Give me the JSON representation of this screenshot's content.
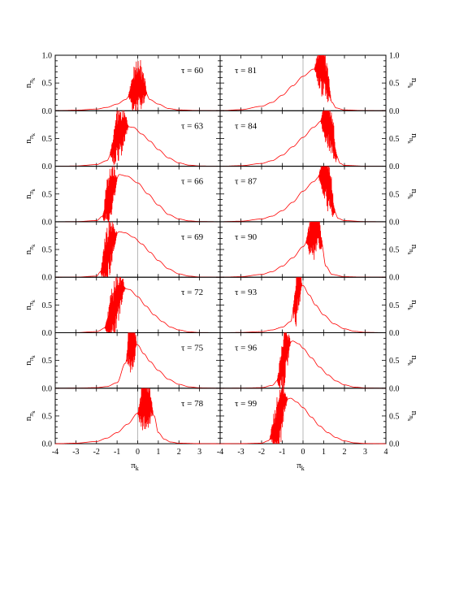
{
  "figure": {
    "xlabel": "π",
    "xlabel_sub": "k",
    "ylabel": "n",
    "ylabel_sub1": "π",
    "ylabel_sub2": "k"
  },
  "chart_data": {
    "type": "line",
    "layout": "7 rows x 2 columns of panels sharing axes",
    "xlim": [
      -4,
      4
    ],
    "ylim": [
      0,
      1
    ],
    "xticks": [
      -4,
      -3,
      -2,
      -1,
      0,
      1,
      2,
      3
    ],
    "xticks_right_panel": [
      -4,
      -3,
      -2,
      -1,
      0,
      1,
      2,
      3,
      4
    ],
    "yticks": [
      "0.0",
      "0.5",
      "1.0"
    ],
    "reference_line_x": 0,
    "line_color": "#ff0000",
    "panels": [
      {
        "label": "τ = 60",
        "col": 0,
        "row": 0,
        "env_x": [
          -4,
          -3,
          -2,
          -1.5,
          -1,
          -0.6,
          -0.3,
          0,
          0.3,
          0.6,
          1,
          1.5,
          2,
          3,
          4
        ],
        "env_y": [
          0,
          0.01,
          0.03,
          0.06,
          0.12,
          0.2,
          0.32,
          0.45,
          0.4,
          0.2,
          0.12,
          0.04,
          0.015,
          0.003,
          0
        ],
        "osc_range": [
          -0.45,
          0.45
        ],
        "osc_amp": 0.55
      },
      {
        "label": "τ = 63",
        "col": 0,
        "row": 1,
        "env_x": [
          -4,
          -3,
          -2,
          -1.5,
          -1.2,
          -1,
          -0.6,
          -0.2,
          0.2,
          0.6,
          1,
          1.5,
          2,
          2.5,
          3,
          4
        ],
        "env_y": [
          0,
          0.005,
          0.03,
          0.1,
          0.3,
          0.55,
          0.72,
          0.7,
          0.58,
          0.45,
          0.3,
          0.15,
          0.06,
          0.02,
          0.005,
          0
        ],
        "osc_range": [
          -1.35,
          -0.45
        ],
        "osc_amp": 0.5
      },
      {
        "label": "τ = 66",
        "col": 0,
        "row": 2,
        "env_x": [
          -4,
          -3,
          -2,
          -1.7,
          -1.4,
          -1.1,
          -0.9,
          -0.5,
          0,
          0.5,
          1,
          1.5,
          2,
          2.5,
          3,
          4
        ],
        "env_y": [
          0,
          0.002,
          0.02,
          0.1,
          0.4,
          0.7,
          0.85,
          0.82,
          0.7,
          0.5,
          0.3,
          0.13,
          0.05,
          0.015,
          0.004,
          0
        ],
        "osc_range": [
          -1.7,
          -1.0
        ],
        "osc_amp": 0.55
      },
      {
        "label": "τ = 69",
        "col": 0,
        "row": 3,
        "env_x": [
          -4,
          -3,
          -2,
          -1.8,
          -1.5,
          -1.2,
          -0.9,
          -0.6,
          -0.2,
          0.2,
          0.6,
          1,
          1.5,
          2,
          2.5,
          3,
          4
        ],
        "env_y": [
          0,
          0.002,
          0.02,
          0.1,
          0.4,
          0.7,
          0.82,
          0.8,
          0.72,
          0.6,
          0.45,
          0.3,
          0.15,
          0.06,
          0.02,
          0.005,
          0
        ],
        "osc_range": [
          -1.8,
          -1.0
        ],
        "osc_amp": 0.55
      },
      {
        "label": "τ = 72",
        "col": 0,
        "row": 4,
        "env_x": [
          -4,
          -3,
          -2,
          -1.5,
          -1.2,
          -1,
          -0.7,
          -0.4,
          0,
          0.4,
          0.8,
          1.2,
          1.6,
          2,
          2.5,
          3,
          4
        ],
        "env_y": [
          0,
          0.002,
          0.02,
          0.1,
          0.35,
          0.65,
          0.8,
          0.78,
          0.65,
          0.48,
          0.32,
          0.2,
          0.1,
          0.05,
          0.015,
          0.004,
          0
        ],
        "osc_range": [
          -1.6,
          -0.6
        ],
        "osc_amp": 0.55
      },
      {
        "label": "τ = 75",
        "col": 0,
        "row": 5,
        "env_x": [
          -4,
          -3,
          -2,
          -1.5,
          -1,
          -0.6,
          -0.4,
          -0.2,
          0,
          0.3,
          0.6,
          1,
          1.5,
          2,
          2.5,
          3,
          4
        ],
        "env_y": [
          0,
          0.002,
          0.01,
          0.03,
          0.1,
          0.45,
          0.8,
          0.85,
          0.78,
          0.62,
          0.48,
          0.32,
          0.16,
          0.07,
          0.025,
          0.007,
          0
        ],
        "osc_range": [
          -0.55,
          -0.05
        ],
        "osc_amp": 0.6
      },
      {
        "label": "τ = 78",
        "col": 0,
        "row": 6,
        "env_x": [
          -4,
          -3,
          -2,
          -1.5,
          -1,
          -0.5,
          0,
          0.3,
          0.6,
          0.8,
          1,
          1.3,
          1.6,
          2,
          3,
          4
        ],
        "env_y": [
          0,
          0.01,
          0.04,
          0.1,
          0.2,
          0.35,
          0.55,
          0.75,
          0.7,
          0.5,
          0.2,
          0.08,
          0.03,
          0.01,
          0.002,
          0
        ],
        "osc_range": [
          0.0,
          0.75
        ],
        "osc_amp": 0.6
      },
      {
        "label": "τ = 81",
        "col": 1,
        "row": 0,
        "env_x": [
          -4,
          -3,
          -2,
          -1.5,
          -1,
          -0.5,
          0,
          0.5,
          0.8,
          1,
          1.2,
          1.4,
          1.6,
          2,
          3,
          4
        ],
        "env_y": [
          0,
          0.02,
          0.08,
          0.15,
          0.28,
          0.45,
          0.62,
          0.75,
          0.8,
          0.75,
          0.45,
          0.15,
          0.05,
          0.015,
          0.002,
          0
        ],
        "osc_range": [
          0.55,
          1.35
        ],
        "osc_amp": 0.55
      },
      {
        "label": "τ = 84",
        "col": 1,
        "row": 1,
        "env_x": [
          -4,
          -3,
          -2,
          -1.5,
          -1,
          -0.5,
          0,
          0.5,
          0.9,
          1.2,
          1.4,
          1.6,
          1.8,
          2,
          3,
          4
        ],
        "env_y": [
          0,
          0.01,
          0.05,
          0.1,
          0.2,
          0.35,
          0.52,
          0.7,
          0.82,
          0.85,
          0.6,
          0.2,
          0.05,
          0.015,
          0.002,
          0
        ],
        "osc_range": [
          0.85,
          1.65
        ],
        "osc_amp": 0.55
      },
      {
        "label": "τ = 87",
        "col": 1,
        "row": 2,
        "env_x": [
          -4,
          -3,
          -2,
          -1.5,
          -1,
          -0.5,
          0,
          0.5,
          0.8,
          1.1,
          1.3,
          1.5,
          1.7,
          2,
          3,
          4
        ],
        "env_y": [
          0,
          0.01,
          0.05,
          0.1,
          0.2,
          0.35,
          0.55,
          0.72,
          0.82,
          0.85,
          0.6,
          0.2,
          0.06,
          0.02,
          0.002,
          0
        ],
        "osc_range": [
          0.75,
          1.55
        ],
        "osc_amp": 0.55
      },
      {
        "label": "τ = 90",
        "col": 1,
        "row": 3,
        "env_x": [
          -4,
          -3,
          -2,
          -1.5,
          -1,
          -0.5,
          0,
          0.3,
          0.5,
          0.7,
          0.9,
          1.1,
          1.4,
          2,
          3,
          4
        ],
        "env_y": [
          0,
          0.01,
          0.05,
          0.1,
          0.2,
          0.35,
          0.55,
          0.72,
          0.85,
          0.88,
          0.6,
          0.2,
          0.05,
          0.01,
          0.002,
          0
        ],
        "osc_range": [
          0.15,
          0.95
        ],
        "osc_amp": 0.55
      },
      {
        "label": "τ = 93",
        "col": 1,
        "row": 4,
        "env_x": [
          -4,
          -3,
          -2,
          -1.5,
          -1,
          -0.6,
          -0.4,
          -0.2,
          0,
          0.3,
          0.6,
          1,
          1.5,
          2,
          2.5,
          3,
          4
        ],
        "env_y": [
          0,
          0.005,
          0.02,
          0.05,
          0.1,
          0.2,
          0.5,
          0.9,
          0.85,
          0.68,
          0.5,
          0.32,
          0.16,
          0.07,
          0.025,
          0.007,
          0
        ],
        "osc_range": [
          -0.5,
          -0.05
        ],
        "osc_amp": 0.55
      },
      {
        "label": "τ = 96",
        "col": 1,
        "row": 5,
        "env_x": [
          -4,
          -3,
          -2,
          -1.5,
          -1.2,
          -1,
          -0.8,
          -0.5,
          -0.2,
          0,
          0.4,
          0.8,
          1.2,
          1.6,
          2,
          2.5,
          3,
          4
        ],
        "env_y": [
          0,
          0.002,
          0.01,
          0.05,
          0.15,
          0.4,
          0.75,
          0.85,
          0.8,
          0.72,
          0.55,
          0.38,
          0.24,
          0.13,
          0.06,
          0.02,
          0.005,
          0
        ],
        "osc_range": [
          -1.25,
          -0.6
        ],
        "osc_amp": 0.55
      },
      {
        "label": "τ = 99",
        "col": 1,
        "row": 6,
        "env_x": [
          -4,
          -3,
          -2,
          -1.7,
          -1.4,
          -1.1,
          -0.9,
          -0.6,
          -0.3,
          0,
          0.4,
          0.8,
          1.2,
          1.6,
          2,
          2.5,
          3,
          4
        ],
        "env_y": [
          0,
          0.002,
          0.01,
          0.05,
          0.2,
          0.5,
          0.78,
          0.82,
          0.75,
          0.65,
          0.48,
          0.32,
          0.2,
          0.11,
          0.05,
          0.015,
          0.004,
          0
        ],
        "osc_range": [
          -1.6,
          -0.75
        ],
        "osc_amp": 0.55
      }
    ]
  }
}
